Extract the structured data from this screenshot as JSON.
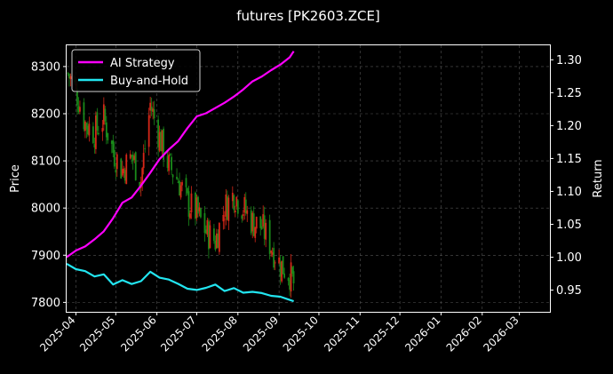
{
  "colors": {
    "background": "#000000",
    "up_candle": "#d62718",
    "down_candle": "#1a8a1a",
    "ai_strategy": "#ff00ff",
    "buy_and_hold": "#22e5f0",
    "grid": "#555555"
  },
  "chart_data": {
    "type": "line",
    "title": "futures [PK2603.ZCE]",
    "ylabel": "Price",
    "ylabel_right": "Return",
    "legend": {
      "placement": "top-left",
      "entries": [
        "AI Strategy",
        "Buy-and-Hold"
      ]
    },
    "grid": true,
    "xlim": [
      "2025-03-25",
      "2026-03-24"
    ],
    "ylim": [
      7780,
      8345
    ],
    "ylim_right": [
      0.917,
      1.322
    ],
    "x_ticks": [
      "2025-04",
      "2025-05",
      "2025-06",
      "2025-07",
      "2025-08",
      "2025-09",
      "2025-10",
      "2025-11",
      "2025-12",
      "2026-01",
      "2026-02",
      "2026-03"
    ],
    "x_tick_dates": [
      "2025-04-01",
      "2025-05-01",
      "2025-06-01",
      "2025-07-01",
      "2025-08-01",
      "2025-09-01",
      "2025-10-01",
      "2025-11-01",
      "2025-12-01",
      "2026-01-01",
      "2026-02-01",
      "2026-03-01"
    ],
    "y_ticks": [
      "7800",
      "7900",
      "8000",
      "8100",
      "8200",
      "8300"
    ],
    "y_ticks_right": [
      "0.95",
      "1.00",
      "1.05",
      "1.10",
      "1.15",
      "1.20",
      "1.25",
      "1.30"
    ],
    "candles": {
      "description": "daily OHLC price candles (approximate)",
      "points": [
        {
          "date": "2025-03-26",
          "close": 8285
        },
        {
          "date": "2025-04-01",
          "close": 8250
        },
        {
          "date": "2025-04-08",
          "close": 8180
        },
        {
          "date": "2025-04-15",
          "close": 8160
        },
        {
          "date": "2025-04-22",
          "close": 8190
        },
        {
          "date": "2025-04-29",
          "close": 8120
        },
        {
          "date": "2025-05-06",
          "close": 8080
        },
        {
          "date": "2025-05-13",
          "close": 8110
        },
        {
          "date": "2025-05-20",
          "close": 8060
        },
        {
          "date": "2025-05-27",
          "close": 8220
        },
        {
          "date": "2025-06-03",
          "close": 8150
        },
        {
          "date": "2025-06-10",
          "close": 8090
        },
        {
          "date": "2025-06-17",
          "close": 8060
        },
        {
          "date": "2025-06-24",
          "close": 8010
        },
        {
          "date": "2025-07-01",
          "close": 7990
        },
        {
          "date": "2025-07-08",
          "close": 7950
        },
        {
          "date": "2025-07-15",
          "close": 7930
        },
        {
          "date": "2025-07-22",
          "close": 8000
        },
        {
          "date": "2025-07-29",
          "close": 8030
        },
        {
          "date": "2025-08-05",
          "close": 8000
        },
        {
          "date": "2025-08-12",
          "close": 7970
        },
        {
          "date": "2025-08-19",
          "close": 7960
        },
        {
          "date": "2025-08-26",
          "close": 7920
        },
        {
          "date": "2025-09-02",
          "close": 7880
        },
        {
          "date": "2025-09-09",
          "close": 7860
        },
        {
          "date": "2025-09-12",
          "close": 7840
        }
      ]
    },
    "series": [
      {
        "name": "AI Strategy",
        "axis": "right",
        "x": [
          "2025-03-25",
          "2025-04-01",
          "2025-04-08",
          "2025-04-15",
          "2025-04-22",
          "2025-04-29",
          "2025-05-06",
          "2025-05-13",
          "2025-05-20",
          "2025-05-27",
          "2025-06-03",
          "2025-06-10",
          "2025-06-17",
          "2025-06-24",
          "2025-07-01",
          "2025-07-08",
          "2025-07-15",
          "2025-07-22",
          "2025-07-29",
          "2025-08-05",
          "2025-08-12",
          "2025-08-19",
          "2025-08-26",
          "2025-09-02",
          "2025-09-09",
          "2025-09-12"
        ],
        "values": [
          1.0,
          1.012,
          1.018,
          1.026,
          1.038,
          1.06,
          1.082,
          1.092,
          1.108,
          1.128,
          1.148,
          1.163,
          1.178,
          1.198,
          1.212,
          1.218,
          1.226,
          1.236,
          1.246,
          1.256,
          1.266,
          1.274,
          1.285,
          1.293,
          1.305,
          1.313
        ]
      },
      {
        "name": "Buy-and-Hold",
        "axis": "right",
        "x": [
          "2025-03-25",
          "2025-04-01",
          "2025-04-08",
          "2025-04-15",
          "2025-04-22",
          "2025-04-29",
          "2025-05-06",
          "2025-05-13",
          "2025-05-20",
          "2025-05-27",
          "2025-06-03",
          "2025-06-10",
          "2025-06-17",
          "2025-06-24",
          "2025-07-01",
          "2025-07-08",
          "2025-07-15",
          "2025-07-22",
          "2025-07-29",
          "2025-08-05",
          "2025-08-12",
          "2025-08-19",
          "2025-08-26",
          "2025-09-02",
          "2025-09-09",
          "2025-09-12"
        ],
        "values": [
          0.99,
          0.982,
          0.978,
          0.972,
          0.975,
          0.96,
          0.966,
          0.96,
          0.964,
          0.976,
          0.97,
          0.968,
          0.958,
          0.952,
          0.95,
          0.953,
          0.957,
          0.948,
          0.952,
          0.945,
          0.946,
          0.944,
          0.94,
          0.939,
          0.935,
          0.933
        ]
      }
    ]
  }
}
